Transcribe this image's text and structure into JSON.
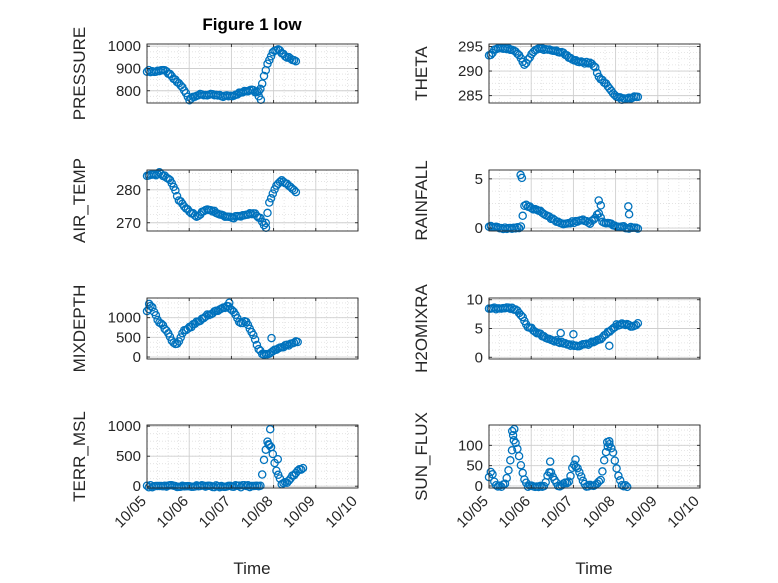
{
  "figure": {
    "title": "Figure 1 low"
  },
  "styles": {
    "marker_color": "#0072BD",
    "grid_color": "#dfdfdf",
    "axis_color": "#262626"
  },
  "x_axis": {
    "label": "Time",
    "ticks": [
      5,
      6,
      7,
      8,
      9,
      10
    ],
    "tick_labels": [
      "10/05",
      "10/06",
      "10/07",
      "10/08",
      "10/09",
      "10/10"
    ]
  },
  "chart_data": [
    {
      "type": "scatter",
      "name": "pressure",
      "ylabel": "PRESSURE",
      "xlim": [
        5,
        10
      ],
      "ylim": [
        745,
        1010
      ],
      "yticks": [
        800,
        900,
        1000
      ],
      "ytick_labels": [
        "800",
        "900",
        "1000"
      ],
      "anchors": [
        [
          5.0,
          890
        ],
        [
          5.2,
          885
        ],
        [
          5.35,
          895
        ],
        [
          5.5,
          880
        ],
        [
          5.65,
          850
        ],
        [
          5.8,
          825
        ],
        [
          5.95,
          780
        ],
        [
          6.0,
          760
        ],
        [
          6.15,
          780
        ],
        [
          6.4,
          782
        ],
        [
          6.6,
          780
        ],
        [
          6.8,
          775
        ],
        [
          7.0,
          778
        ],
        [
          7.2,
          790
        ],
        [
          7.4,
          800
        ],
        [
          7.5,
          810
        ],
        [
          7.6,
          790
        ],
        [
          7.7,
          815
        ],
        [
          7.85,
          920
        ],
        [
          8.0,
          980
        ],
        [
          8.1,
          990
        ],
        [
          8.25,
          960
        ],
        [
          8.4,
          945
        ],
        [
          8.55,
          935
        ]
      ]
    },
    {
      "type": "scatter",
      "name": "theta",
      "ylabel": "THETA",
      "xlim": [
        5,
        10
      ],
      "ylim": [
        283.5,
        295.5
      ],
      "yticks": [
        285,
        290,
        295
      ],
      "ytick_labels": [
        "285",
        "290",
        "295"
      ],
      "anchors": [
        [
          5.0,
          293
        ],
        [
          5.1,
          294
        ],
        [
          5.2,
          294.8
        ],
        [
          5.4,
          294.6
        ],
        [
          5.6,
          294.3
        ],
        [
          5.75,
          292.8
        ],
        [
          5.85,
          291
        ],
        [
          6.0,
          293.5
        ],
        [
          6.15,
          294.6
        ],
        [
          6.4,
          294.3
        ],
        [
          6.6,
          294
        ],
        [
          6.8,
          293.5
        ],
        [
          7.0,
          292.2
        ],
        [
          7.2,
          291.8
        ],
        [
          7.4,
          291.5
        ],
        [
          7.5,
          291
        ],
        [
          7.6,
          289
        ],
        [
          7.8,
          287
        ],
        [
          8.0,
          284.8
        ],
        [
          8.2,
          284.2
        ],
        [
          8.35,
          284.5
        ],
        [
          8.55,
          284.8
        ]
      ]
    },
    {
      "type": "scatter",
      "name": "air_temp",
      "ylabel": "AIR_TEMP",
      "xlim": [
        5,
        10
      ],
      "ylim": [
        267.5,
        286
      ],
      "yticks": [
        270,
        280
      ],
      "ytick_labels": [
        "270",
        "280"
      ],
      "anchors": [
        [
          5.0,
          284
        ],
        [
          5.15,
          284.5
        ],
        [
          5.3,
          285
        ],
        [
          5.45,
          284
        ],
        [
          5.6,
          282
        ],
        [
          5.75,
          277
        ],
        [
          5.9,
          274.5
        ],
        [
          6.05,
          273
        ],
        [
          6.2,
          272
        ],
        [
          6.4,
          274
        ],
        [
          6.6,
          273.5
        ],
        [
          6.8,
          272
        ],
        [
          7.0,
          271.5
        ],
        [
          7.2,
          272
        ],
        [
          7.4,
          272.5
        ],
        [
          7.55,
          273
        ],
        [
          7.7,
          271
        ],
        [
          7.8,
          269
        ],
        [
          7.9,
          276
        ],
        [
          8.05,
          281
        ],
        [
          8.2,
          283
        ],
        [
          8.4,
          281
        ],
        [
          8.55,
          279
        ]
      ]
    },
    {
      "type": "scatter",
      "name": "rainfall",
      "ylabel": "RAINFALL",
      "xlim": [
        5,
        10
      ],
      "ylim": [
        -0.3,
        5.9
      ],
      "yticks": [
        0,
        5
      ],
      "ytick_labels": [
        "0",
        "5"
      ],
      "anchors": [
        [
          5.0,
          0.2
        ],
        [
          5.2,
          0
        ],
        [
          5.5,
          0
        ],
        [
          5.75,
          0
        ],
        [
          5.85,
          2.4
        ],
        [
          6.0,
          2.0
        ],
        [
          6.2,
          1.8
        ],
        [
          6.4,
          1.2
        ],
        [
          6.6,
          0.6
        ],
        [
          6.8,
          0.4
        ],
        [
          7.0,
          0.6
        ],
        [
          7.2,
          0.8
        ],
        [
          7.4,
          0.5
        ],
        [
          7.6,
          1.5
        ],
        [
          7.7,
          0.5
        ],
        [
          7.85,
          0.4
        ],
        [
          8.0,
          0.2
        ],
        [
          8.2,
          0.1
        ],
        [
          8.4,
          0
        ],
        [
          8.55,
          0
        ]
      ]
    },
    {
      "type": "scatter",
      "name": "mixdepth",
      "ylabel": "MIXDEPTH",
      "xlim": [
        5,
        10
      ],
      "ylim": [
        -50,
        1500
      ],
      "yticks": [
        0,
        500,
        1000
      ],
      "ytick_labels": [
        "0",
        "500",
        "1000"
      ],
      "anchors": [
        [
          5.0,
          1150
        ],
        [
          5.1,
          1300
        ],
        [
          5.25,
          950
        ],
        [
          5.45,
          700
        ],
        [
          5.6,
          400
        ],
        [
          5.7,
          280
        ],
        [
          5.85,
          650
        ],
        [
          6.0,
          750
        ],
        [
          6.2,
          900
        ],
        [
          6.4,
          1050
        ],
        [
          6.6,
          1150
        ],
        [
          6.8,
          1250
        ],
        [
          6.9,
          1300
        ],
        [
          7.05,
          1150
        ],
        [
          7.2,
          850
        ],
        [
          7.35,
          900
        ],
        [
          7.5,
          600
        ],
        [
          7.65,
          200
        ],
        [
          7.75,
          20
        ],
        [
          7.9,
          100
        ],
        [
          8.1,
          200
        ],
        [
          8.3,
          280
        ],
        [
          8.5,
          380
        ],
        [
          8.6,
          420
        ]
      ]
    },
    {
      "type": "scatter",
      "name": "h2omixra",
      "ylabel": "H2OMIXRA",
      "xlim": [
        5,
        10
      ],
      "ylim": [
        -0.3,
        10.3
      ],
      "yticks": [
        0,
        5,
        10
      ],
      "ytick_labels": [
        "0",
        "5",
        "10"
      ],
      "anchors": [
        [
          5.0,
          8.6
        ],
        [
          5.2,
          8.4
        ],
        [
          5.4,
          8.6
        ],
        [
          5.6,
          8.4
        ],
        [
          5.75,
          7.5
        ],
        [
          5.9,
          5.5
        ],
        [
          6.1,
          4.5
        ],
        [
          6.3,
          3.5
        ],
        [
          6.5,
          3.0
        ],
        [
          6.7,
          2.6
        ],
        [
          6.9,
          2.2
        ],
        [
          7.1,
          2.0
        ],
        [
          7.3,
          2.2
        ],
        [
          7.5,
          2.8
        ],
        [
          7.65,
          3.0
        ],
        [
          7.8,
          4.2
        ],
        [
          8.0,
          5.5
        ],
        [
          8.2,
          5.8
        ],
        [
          8.4,
          5.4
        ],
        [
          8.55,
          5.8
        ]
      ]
    },
    {
      "type": "scatter",
      "name": "terr_msl",
      "ylabel": "TERR_MSL",
      "xlim": [
        5,
        10
      ],
      "ylim": [
        -30,
        1020
      ],
      "yticks": [
        0,
        500,
        1000
      ],
      "ytick_labels": [
        "0",
        "500",
        "1000"
      ],
      "anchors": [
        [
          5.0,
          0
        ],
        [
          6.0,
          0
        ],
        [
          7.0,
          0
        ],
        [
          7.7,
          0
        ],
        [
          7.75,
          350
        ],
        [
          7.85,
          750
        ],
        [
          7.95,
          650
        ],
        [
          8.05,
          300
        ],
        [
          8.2,
          30
        ],
        [
          8.35,
          80
        ],
        [
          8.55,
          250
        ],
        [
          8.7,
          310
        ]
      ]
    },
    {
      "type": "scatter",
      "name": "sun_flux",
      "ylabel": "SUN_FLUX",
      "xlim": [
        5,
        10
      ],
      "ylim": [
        -5,
        150
      ],
      "yticks": [
        0,
        50,
        100
      ],
      "ytick_labels": [
        "0",
        "50",
        "100"
      ],
      "anchors": [
        [
          5.0,
          20
        ],
        [
          5.05,
          40
        ],
        [
          5.15,
          0
        ],
        [
          5.3,
          0
        ],
        [
          5.4,
          10
        ],
        [
          5.5,
          60
        ],
        [
          5.6,
          120
        ],
        [
          5.7,
          80
        ],
        [
          5.8,
          30
        ],
        [
          5.9,
          0
        ],
        [
          6.1,
          0
        ],
        [
          6.3,
          0
        ],
        [
          6.45,
          40
        ],
        [
          6.5,
          25
        ],
        [
          6.65,
          0
        ],
        [
          6.9,
          10
        ],
        [
          7.0,
          55
        ],
        [
          7.1,
          45
        ],
        [
          7.2,
          20
        ],
        [
          7.3,
          0
        ],
        [
          7.5,
          0
        ],
        [
          7.65,
          15
        ],
        [
          7.75,
          75
        ],
        [
          7.85,
          105
        ],
        [
          7.95,
          80
        ],
        [
          8.05,
          30
        ],
        [
          8.15,
          0
        ],
        [
          8.3,
          0
        ]
      ]
    }
  ]
}
